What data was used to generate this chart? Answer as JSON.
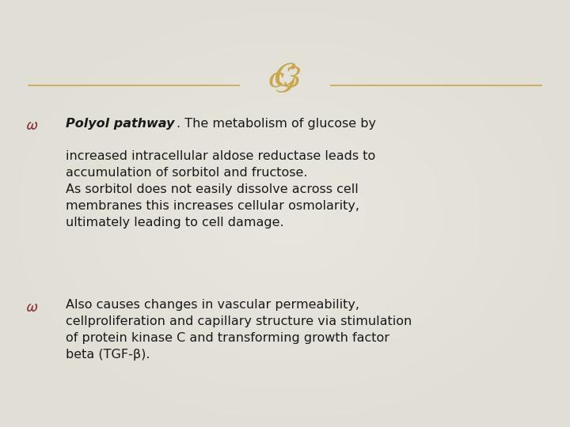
{
  "background_color": "#e8e6de",
  "bg_gradient": true,
  "divider_color": "#c8a84b",
  "text_color": "#1a1a1a",
  "bullet_color": "#8b3030",
  "bullet1_bold": "Polyol pathway",
  "bullet1_rest": ". The metabolism of glucose by\nincreased intracellular aldose reductase leads to\naccumulation of sorbitol and fructose.\nAs sorbitol does not easily dissolve across cell\nmembranes this increases cellular osmolarity,\nultimately leading to cell damage.",
  "bullet2_text": "Also causes changes in vascular permeability,\ncellproliferation and capillary structure via stimulation\nof protein kinase C and transforming growth factor\nbeta (TGF-β).",
  "fig_width": 7.2,
  "fig_height": 5.4,
  "dpi": 100
}
